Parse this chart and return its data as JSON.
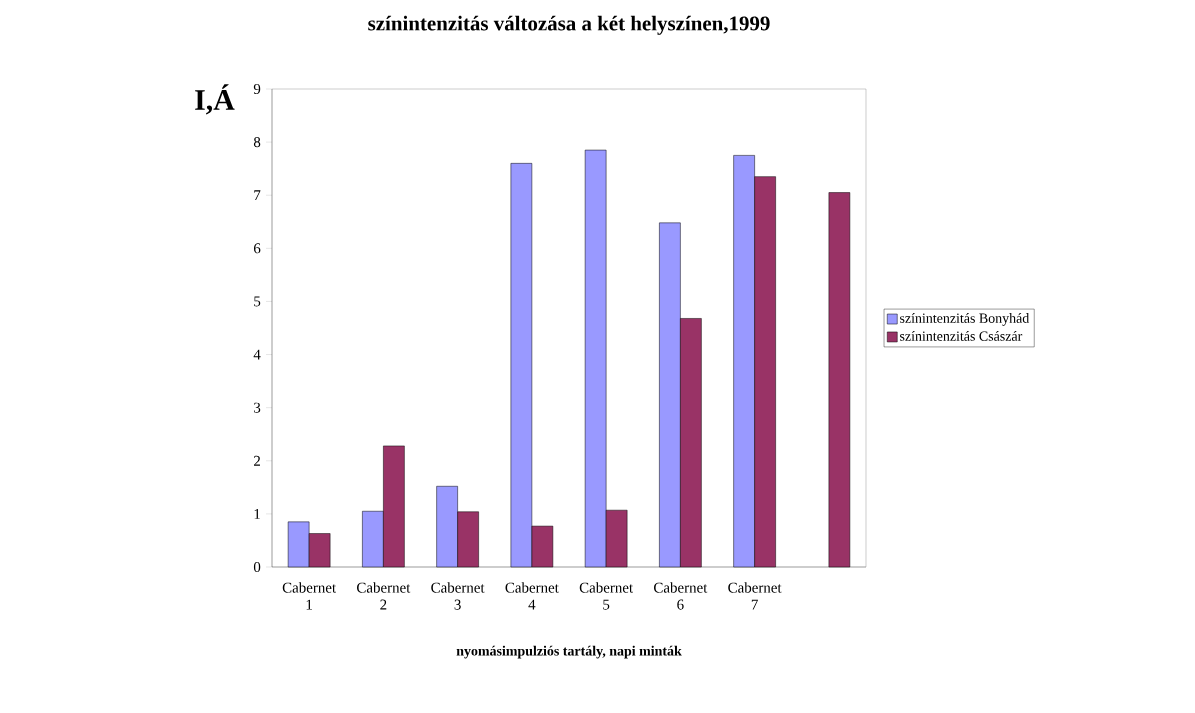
{
  "chart_data": {
    "type": "bar",
    "title": "színintenzitás változása a két helyszínen,1999",
    "xlabel": "nyomásimpulziós tartály, napi minták",
    "ylabel": "I,Á",
    "categories": [
      "Cabernet 1",
      "Cabernet 2",
      "Cabernet 3",
      "Cabernet 4",
      "Cabernet 5",
      "Cabernet 6",
      "Cabernet 7",
      null
    ],
    "series": [
      {
        "name": "színintenzitás  Bonyhád",
        "color": "#9999ff",
        "values": [
          0.85,
          1.05,
          1.52,
          7.6,
          7.85,
          6.48,
          7.75,
          null
        ]
      },
      {
        "name": "színintenzitás  Császár",
        "color": "#993366",
        "values": [
          0.63,
          2.28,
          1.04,
          0.77,
          1.07,
          4.68,
          7.35,
          7.05
        ]
      }
    ],
    "ylim": [
      0,
      9
    ],
    "yticks": [
      0,
      1,
      2,
      3,
      4,
      5,
      6,
      7,
      8,
      9
    ],
    "legend": "right"
  }
}
